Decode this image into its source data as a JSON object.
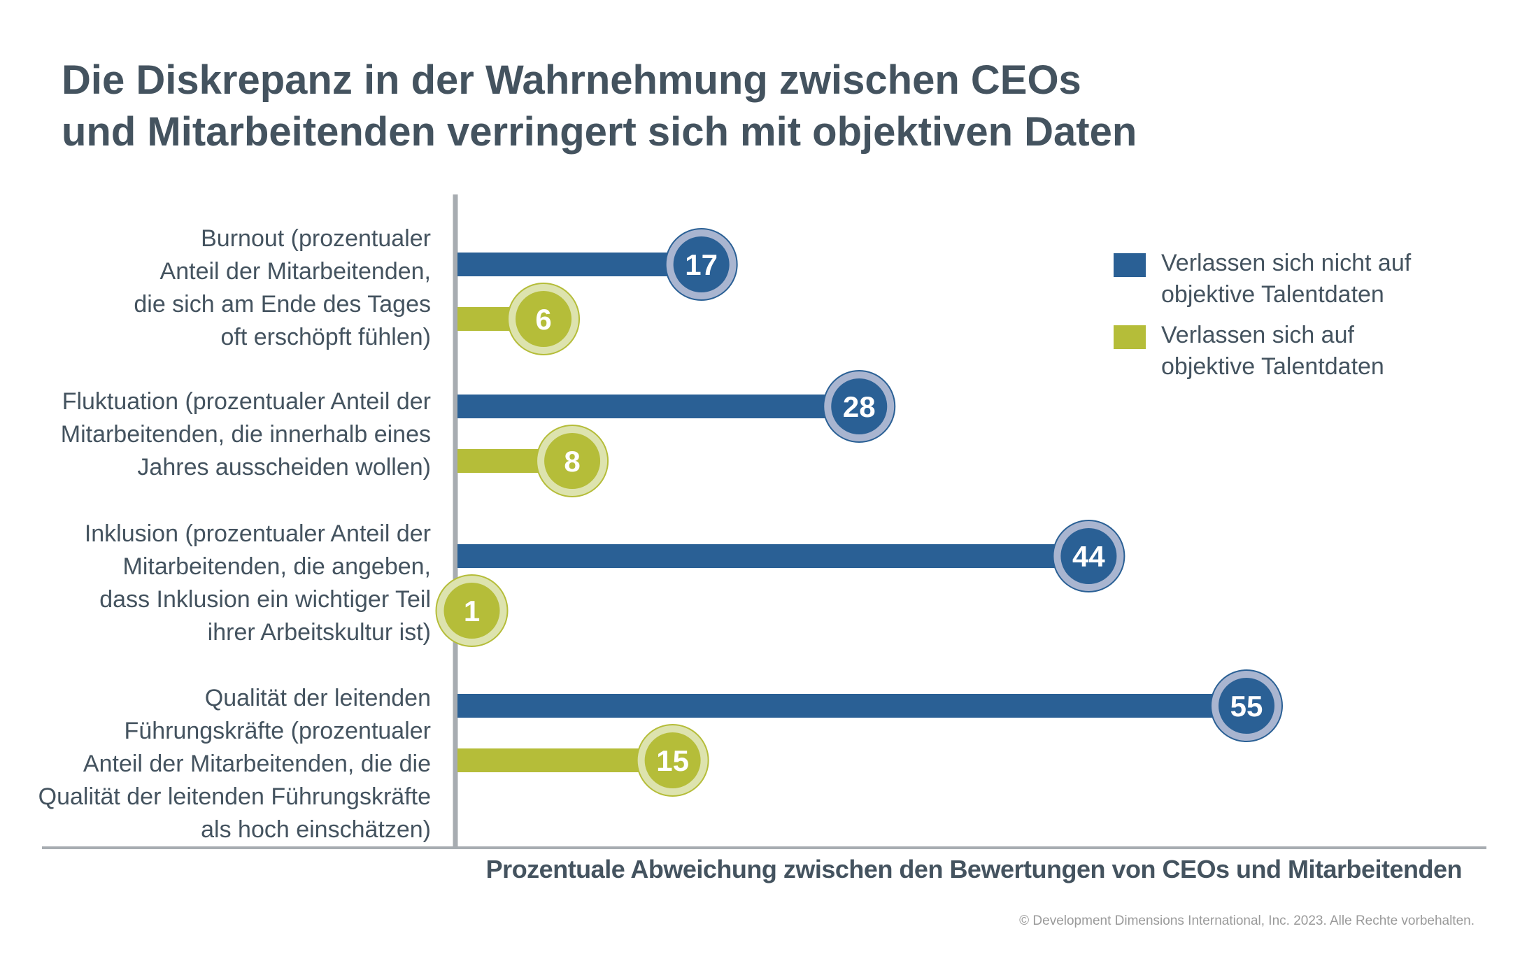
{
  "chart_data": {
    "type": "bar",
    "orientation": "horizontal",
    "title": [
      "Die Diskrepanz in der Wahrnehmung zwischen CEOs",
      "und Mitarbeitenden verringert sich mit objektiven Daten"
    ],
    "xlabel": "Prozentuale Abweichung zwischen den Bewertungen von CEOs und Mitarbeitenden",
    "xlim": [
      0,
      60
    ],
    "grid": false,
    "legend_position": "top-right",
    "categories": [
      [
        "Burnout (prozentualer",
        "Anteil der Mitarbeitenden,",
        "die sich am Ende des Tages",
        "oft erschöpft fühlen)"
      ],
      [
        "Fluktuation (prozentualer Anteil der",
        "Mitarbeitenden, die innerhalb eines",
        "Jahres ausscheiden wollen)"
      ],
      [
        "Inklusion (prozentualer Anteil der",
        "Mitarbeitenden, die angeben,",
        "dass Inklusion ein wichtiger Teil",
        "ihrer Arbeitskultur ist)"
      ],
      [
        "Qualität der leitenden",
        "Führungskräfte (prozentualer",
        "Anteil der Mitarbeitenden, die die",
        "Qualität der leitenden Führungskräfte",
        "als hoch einschätzen)"
      ]
    ],
    "series": [
      {
        "name": [
          "Verlassen sich nicht auf",
          "objektive Talentdaten"
        ],
        "color": "#2a6095",
        "ring_color": "#a9b5d0",
        "values": [
          17,
          28,
          44,
          55
        ]
      },
      {
        "name": [
          "Verlassen sich auf",
          "objektive Talentdaten"
        ],
        "color": "#b5bd39",
        "ring_color": "#dde3ae",
        "values": [
          6,
          8,
          1,
          15
        ]
      }
    ]
  },
  "footer": {
    "copyright": "© Development Dimensions International, Inc. 2023. Alle Rechte vorbehalten."
  }
}
